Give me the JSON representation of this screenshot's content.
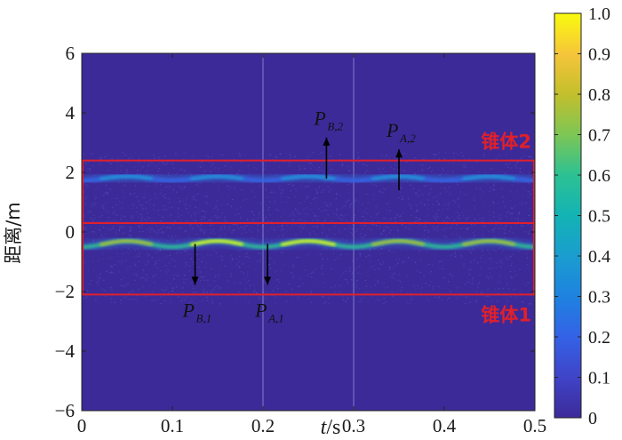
{
  "chart_data": {
    "type": "heatmap",
    "title": "",
    "xlabel_var": "t",
    "xlabel_unit": "/s",
    "ylabel": "距离/m",
    "xlim": [
      0,
      0.5
    ],
    "ylim": [
      -6,
      6
    ],
    "xticks": [
      "0",
      "0.1",
      "0.2",
      "0.3",
      "0.4",
      "0.5"
    ],
    "yticks": [
      "6",
      "4",
      "2",
      "0",
      "−2",
      "−4",
      "−6"
    ],
    "colorbar": {
      "range": [
        0,
        1.0
      ],
      "ticks": [
        "1.0",
        "0.9",
        "0.8",
        "0.7",
        "0.6",
        "0.5",
        "0.4",
        "0.3",
        "0.2",
        "0.1",
        "0"
      ],
      "colormap": "parula"
    },
    "regions": [
      {
        "label": "锥体2",
        "y_range": [
          0.3,
          2.4
        ],
        "color": "#e0202a"
      },
      {
        "label": "锥体1",
        "y_range": [
          -2.1,
          0.3
        ],
        "color": "#e0202a"
      }
    ],
    "traces": [
      {
        "region": "锥体2",
        "mean_y": 1.8,
        "amplitude": 0.07,
        "period_s": 0.1,
        "peak_intensity": 0.45
      },
      {
        "region": "锥体1",
        "mean_y": -0.4,
        "amplitude": 0.1,
        "period_s": 0.1,
        "peak_intensity": 1.0
      }
    ],
    "annotations": [
      {
        "text": "P",
        "sub": "B,2",
        "x": 0.27,
        "y": 1.8,
        "direction": "up"
      },
      {
        "text": "P",
        "sub": "A,2",
        "x": 0.35,
        "y": 1.4,
        "direction": "up"
      },
      {
        "text": "P",
        "sub": "B,1",
        "x": 0.125,
        "y": -0.4,
        "direction": "down"
      },
      {
        "text": "P",
        "sub": "A,1",
        "x": 0.205,
        "y": -0.4,
        "direction": "down"
      }
    ],
    "background_color": "#3d2a99"
  }
}
